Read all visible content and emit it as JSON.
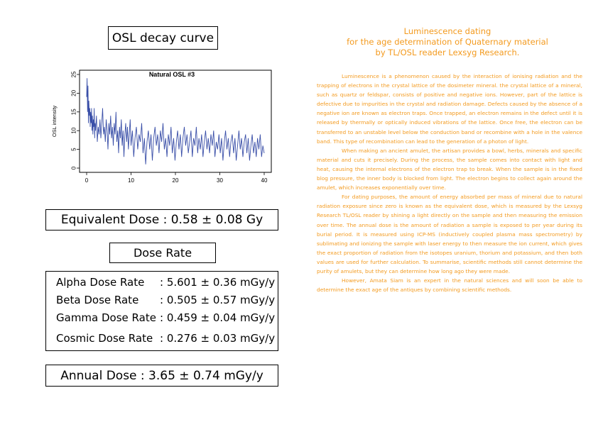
{
  "left": {
    "chart_title_box": "OSL decay curve",
    "equivalent_dose": "Equivalent Dose : 0.58 ± 0.08 Gy",
    "dose_rate_header": "Dose Rate",
    "dose_rates": [
      {
        "name": "Alpha Dose Rate",
        "value": ": 5.601 ± 0.36 mGy/y"
      },
      {
        "name": "Beta Dose Rate",
        "value": ": 0.505 ± 0.57 mGy/y"
      },
      {
        "name": "Gamma Dose Rate",
        "value": ": 0.459 ± 0.04 mGy/y"
      },
      {
        "name": "Cosmic Dose Rate",
        "value": ": 0.276 ± 0.03 mGy/y"
      }
    ],
    "annual_dose": "Annual Dose : 3.65 ± 0.74 mGy/y"
  },
  "right": {
    "title_lines": [
      "Luminescence dating",
      "for the age determination of Quaternary material",
      "by TL/OSL reader Lexsyg Research."
    ],
    "paragraphs": [
      "Luminescence is a phenomenon caused by the interaction of ionising radiation and the trapping of electrons in the crystal lattice of the dosimeter mineral. the crystal lattice of a mineral, such as quartz or feldspar, consists of positive and negative ions. However, part of the lattice is defective due to impurities in the crystal and radiation damage. Defects caused by the absence of a negative ion are known as electron traps. Once trapped, an electron remains in the defect until it is released by thermally or optically induced vibrations of the lattice. Once free, the electron can be transferred to an unstable level below the conduction band or recombine with a hole in the valence band. This type of recombination can lead to the generation of a photon of light.",
      "When making an ancient amulet, the artisan provides a bowl, herbs, minerals and specific material and cuts it precisely. During the process, the sample comes into contact with light and heat, causing the internal electrons of the electron trap to break. When the sample is in the fixed blog pressure, the inner body is blocked from light. The electron begins to collect again around the amulet, which increases exponentially over time.",
      "For dating purposes, the amount of energy absorbed per mass of mineral due to natural radiation exposure since zero is known as the equivalent dose, which is measured by the Lexsyg Research TL/OSL reader by shining a light directly on the sample and then measuring the emission over time. The annual dose is the amount of radiation a sample is exposed to per year during its burial period. It is measured using ICP-MS (inductively coupled plasma mass spectrometry) by sublimating and ionizing the sample with laser energy to then measure the ion current, which gives the exact proportion of radiation from the isotopes uranium, thorium and potassium, and then both values are used for further calculation. To summarise, scientific methods still cannot determine the purity of amulets, but they can determine how long ago they were made.",
      "However, Amata Siam is an expert in the natural sciences and will soon be able to determine the exact age of the antiques by combining scientific methods."
    ]
  },
  "colors": {
    "accent": "#f39a1e",
    "series": "#3a4fa8"
  },
  "chart_data": {
    "type": "line",
    "title": "Natural OSL #3",
    "xlabel": "",
    "ylabel": "OSL intensity",
    "xlim": [
      0,
      40
    ],
    "ylim": [
      0,
      25
    ],
    "xticks": [
      0,
      10,
      20,
      30,
      40
    ],
    "yticks": [
      0,
      5,
      10,
      15,
      20,
      25
    ],
    "grid": false,
    "series": [
      {
        "values": [
          [
            0.0,
            19
          ],
          [
            0.1,
            24
          ],
          [
            0.2,
            15
          ],
          [
            0.3,
            22
          ],
          [
            0.4,
            12
          ],
          [
            0.5,
            18
          ],
          [
            0.6,
            14
          ],
          [
            0.7,
            16
          ],
          [
            0.8,
            11
          ],
          [
            0.9,
            15
          ],
          [
            1.0,
            12
          ],
          [
            1.1,
            16
          ],
          [
            1.2,
            10
          ],
          [
            1.3,
            14
          ],
          [
            1.4,
            9
          ],
          [
            1.5,
            13
          ],
          [
            1.6,
            11
          ],
          [
            1.7,
            16
          ],
          [
            1.8,
            8
          ],
          [
            1.9,
            12
          ],
          [
            2.0,
            10
          ],
          [
            2.2,
            14
          ],
          [
            2.4,
            7
          ],
          [
            2.6,
            11
          ],
          [
            2.8,
            9
          ],
          [
            3.0,
            13
          ],
          [
            3.2,
            8
          ],
          [
            3.4,
            12
          ],
          [
            3.6,
            16
          ],
          [
            3.8,
            9
          ],
          [
            4.0,
            11
          ],
          [
            4.2,
            7
          ],
          [
            4.4,
            13
          ],
          [
            4.6,
            10
          ],
          [
            4.8,
            5
          ],
          [
            5.0,
            12
          ],
          [
            5.2,
            9
          ],
          [
            5.4,
            14
          ],
          [
            5.6,
            8
          ],
          [
            5.8,
            11
          ],
          [
            6.0,
            6
          ],
          [
            6.2,
            12
          ],
          [
            6.4,
            9
          ],
          [
            6.6,
            15
          ],
          [
            6.8,
            7
          ],
          [
            7.0,
            10
          ],
          [
            7.2,
            4
          ],
          [
            7.4,
            11
          ],
          [
            7.6,
            8
          ],
          [
            7.8,
            13
          ],
          [
            8.0,
            6
          ],
          [
            8.2,
            10
          ],
          [
            8.4,
            3
          ],
          [
            8.6,
            9
          ],
          [
            8.8,
            12
          ],
          [
            9.0,
            7
          ],
          [
            9.2,
            11
          ],
          [
            9.4,
            5
          ],
          [
            9.6,
            9
          ],
          [
            9.8,
            13
          ],
          [
            10.0,
            6
          ],
          [
            10.3,
            10
          ],
          [
            10.6,
            3
          ],
          [
            10.9,
            8
          ],
          [
            11.2,
            11
          ],
          [
            11.5,
            5
          ],
          [
            11.8,
            9
          ],
          [
            12.1,
            7
          ],
          [
            12.4,
            12
          ],
          [
            12.7,
            4
          ],
          [
            13.0,
            8
          ],
          [
            13.3,
            1
          ],
          [
            13.6,
            7
          ],
          [
            13.9,
            10
          ],
          [
            14.2,
            5
          ],
          [
            14.5,
            9
          ],
          [
            14.8,
            2
          ],
          [
            15.1,
            8
          ],
          [
            15.4,
            11
          ],
          [
            15.7,
            6
          ],
          [
            16.0,
            9
          ],
          [
            16.3,
            4
          ],
          [
            16.6,
            10
          ],
          [
            16.9,
            7
          ],
          [
            17.2,
            12
          ],
          [
            17.5,
            5
          ],
          [
            17.8,
            8
          ],
          [
            18.1,
            3
          ],
          [
            18.4,
            9
          ],
          [
            18.7,
            6
          ],
          [
            19.0,
            11
          ],
          [
            19.3,
            4
          ],
          [
            19.6,
            8
          ],
          [
            19.9,
            2
          ],
          [
            20.2,
            7
          ],
          [
            20.5,
            10
          ],
          [
            20.8,
            5
          ],
          [
            21.1,
            9
          ],
          [
            21.4,
            3
          ],
          [
            21.7,
            8
          ],
          [
            22.0,
            11
          ],
          [
            22.3,
            6
          ],
          [
            22.6,
            9
          ],
          [
            22.9,
            4
          ],
          [
            23.2,
            7
          ],
          [
            23.5,
            10
          ],
          [
            23.8,
            3
          ],
          [
            24.1,
            8
          ],
          [
            24.4,
            6
          ],
          [
            24.7,
            11
          ],
          [
            25.0,
            4
          ],
          [
            25.3,
            8
          ],
          [
            25.6,
            5
          ],
          [
            25.9,
            9
          ],
          [
            26.2,
            3
          ],
          [
            26.5,
            7
          ],
          [
            26.8,
            10
          ],
          [
            27.1,
            5
          ],
          [
            27.4,
            8
          ],
          [
            27.7,
            4
          ],
          [
            28.0,
            9
          ],
          [
            28.3,
            6
          ],
          [
            28.6,
            10
          ],
          [
            28.9,
            3
          ],
          [
            29.2,
            7
          ],
          [
            29.5,
            5
          ],
          [
            29.8,
            9
          ],
          [
            30.1,
            4
          ],
          [
            30.4,
            8
          ],
          [
            30.7,
            2
          ],
          [
            31.0,
            7
          ],
          [
            31.3,
            10
          ],
          [
            31.6,
            5
          ],
          [
            31.9,
            8
          ],
          [
            32.2,
            3
          ],
          [
            32.5,
            7
          ],
          [
            32.8,
            9
          ],
          [
            33.1,
            4
          ],
          [
            33.4,
            8
          ],
          [
            33.7,
            2
          ],
          [
            34.0,
            6
          ],
          [
            34.3,
            10
          ],
          [
            34.6,
            5
          ],
          [
            34.9,
            8
          ],
          [
            35.2,
            3
          ],
          [
            35.5,
            7
          ],
          [
            35.8,
            9
          ],
          [
            36.1,
            4
          ],
          [
            36.4,
            8
          ],
          [
            36.7,
            2
          ],
          [
            37.0,
            6
          ],
          [
            37.3,
            9
          ],
          [
            37.6,
            4
          ],
          [
            37.9,
            7
          ],
          [
            38.2,
            3
          ],
          [
            38.5,
            8
          ],
          [
            38.8,
            5
          ],
          [
            39.1,
            9
          ],
          [
            39.4,
            3
          ],
          [
            39.7,
            6
          ],
          [
            40.0,
            4
          ]
        ]
      }
    ]
  }
}
